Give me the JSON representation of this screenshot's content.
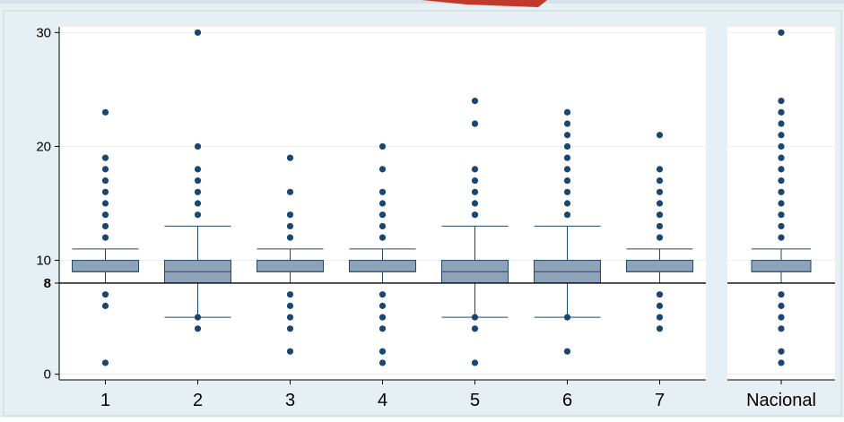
{
  "colors": {
    "background": "#e6eff3",
    "plot_background": "#ffffff",
    "box_fill": "#8ea2ba",
    "box_stroke": "#1f4a6b",
    "outlier": "#1a476f",
    "reference_line": "#000000",
    "grid": "#e8eef2",
    "accent_red": "#c0392b"
  },
  "chart_data": {
    "type": "box",
    "title": "",
    "xlabel": "",
    "ylabel": "",
    "ylim": [
      -0.5,
      30.5
    ],
    "yticks": [
      0,
      10,
      20,
      30
    ],
    "reference_line": {
      "value": 8,
      "label": "8"
    },
    "grid": true,
    "panels": [
      {
        "name": "regions",
        "categories": [
          "1",
          "2",
          "3",
          "4",
          "5",
          "6",
          "7"
        ],
        "boxes": [
          {
            "category": "1",
            "whisker_low": 8,
            "q1": 9,
            "median": 9,
            "q3": 10,
            "whisker_high": 11,
            "outliers": [
              1,
              6,
              7,
              12,
              13,
              14,
              15,
              16,
              17,
              18,
              19,
              23
            ]
          },
          {
            "category": "2",
            "whisker_low": 5,
            "q1": 8,
            "median": 9,
            "q3": 10,
            "whisker_high": 13,
            "outliers": [
              4,
              5,
              14,
              15,
              16,
              17,
              18,
              20,
              30
            ]
          },
          {
            "category": "3",
            "whisker_low": 8,
            "q1": 9,
            "median": 9,
            "q3": 10,
            "whisker_high": 11,
            "outliers": [
              2,
              4,
              5,
              6,
              7,
              12,
              13,
              14,
              16,
              19
            ]
          },
          {
            "category": "4",
            "whisker_low": 8,
            "q1": 9,
            "median": 9,
            "q3": 10,
            "whisker_high": 11,
            "outliers": [
              1,
              2,
              4,
              5,
              6,
              7,
              12,
              13,
              14,
              15,
              16,
              18,
              20
            ]
          },
          {
            "category": "5",
            "whisker_low": 5,
            "q1": 8,
            "median": 9,
            "q3": 10,
            "whisker_high": 13,
            "outliers": [
              1,
              4,
              5,
              14,
              15,
              16,
              17,
              18,
              22,
              24
            ]
          },
          {
            "category": "6",
            "whisker_low": 5,
            "q1": 8,
            "median": 9,
            "q3": 10,
            "whisker_high": 13,
            "outliers": [
              2,
              5,
              14,
              15,
              16,
              17,
              18,
              19,
              20,
              21,
              22,
              23
            ]
          },
          {
            "category": "7",
            "whisker_low": 8,
            "q1": 9,
            "median": 9,
            "q3": 10,
            "whisker_high": 11,
            "outliers": [
              4,
              5,
              6,
              7,
              12,
              13,
              14,
              15,
              16,
              17,
              18,
              21
            ]
          }
        ]
      },
      {
        "name": "national",
        "categories": [
          "Nacional"
        ],
        "boxes": [
          {
            "category": "Nacional",
            "whisker_low": 8,
            "q1": 9,
            "median": 9,
            "q3": 10,
            "whisker_high": 11,
            "outliers": [
              1,
              2,
              4,
              5,
              6,
              7,
              12,
              13,
              14,
              15,
              16,
              17,
              18,
              19,
              20,
              21,
              22,
              23,
              24,
              30
            ]
          }
        ]
      }
    ]
  }
}
